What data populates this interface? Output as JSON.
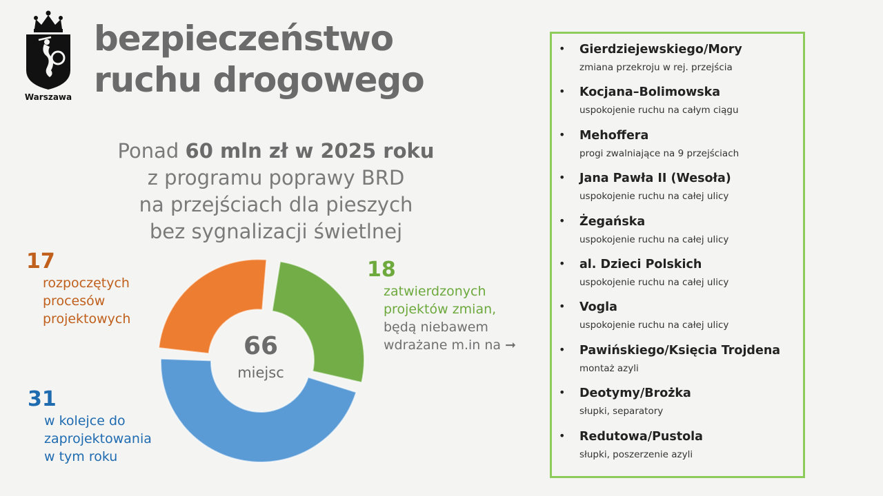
{
  "logo": {
    "text": "Warszawa"
  },
  "title": {
    "line1": "bezpieczeństwo",
    "line2": "ruchu drogowego"
  },
  "subtitle": {
    "prefix": "Ponad ",
    "bold": "60 mln zł w 2025 roku",
    "line2": "z programu poprawy BRD",
    "line3": "na przejściach dla pieszych",
    "line4": "bez sygnalizacji świetlnej"
  },
  "stats": {
    "started": {
      "value": "17",
      "label": "rozpoczętych\nprocesów\nprojektowych"
    },
    "queued": {
      "value": "31",
      "label": "w kolejce do\nzaprojektowania\nw tym roku"
    },
    "approved": {
      "value": "18",
      "label_green": "zatwierdzonych\nprojektów zmian,",
      "label_gray": "będą niebawem\nwdrażane m.in na ➞"
    }
  },
  "chart_data": {
    "type": "pie",
    "variant": "donut",
    "center_value": "66",
    "center_label": "miejsc",
    "slices": [
      {
        "label": "zatwierdzonych projektów zmian",
        "value": 18,
        "color": "#72ad47"
      },
      {
        "label": "w kolejce do zaprojektowania w tym roku",
        "value": 31,
        "color": "#5b9bd5"
      },
      {
        "label": "rozpoczętych procesów projektowych",
        "value": 17,
        "color": "#ed7d31"
      }
    ]
  },
  "list": [
    {
      "name": "Gierdziejewskiego/Mory",
      "desc": "zmiana przekroju w rej. przejścia"
    },
    {
      "name": "Kocjana–Bolimowska",
      "desc": "uspokojenie ruchu na całym ciągu"
    },
    {
      "name": "Mehoffera",
      "desc": "progi zwalniające na 9 przejściach"
    },
    {
      "name": "Jana Pawła II (Wesoła)",
      "desc": "uspokojenie ruchu na całej ulicy"
    },
    {
      "name": "Żegańska",
      "desc": "uspokojenie ruchu na całej ulicy"
    },
    {
      "name": "al. Dzieci Polskich",
      "desc": "uspokojenie ruchu na całej ulicy"
    },
    {
      "name": "Vogla",
      "desc": "uspokojenie ruchu na całej ulicy"
    },
    {
      "name": "Pawińskiego/Księcia Trojdena",
      "desc": "montaż azyli"
    },
    {
      "name": "Deotymy/Brożka",
      "desc": "słupki, separatory"
    },
    {
      "name": "Redutowa/Pustola",
      "desc": "słupki, poszerzenie azyli"
    }
  ],
  "colors": {
    "accent_green": "#8dcc5a",
    "title_gray": "#6b6b6b",
    "orange": "#c0601c",
    "blue": "#1f6bb0"
  }
}
